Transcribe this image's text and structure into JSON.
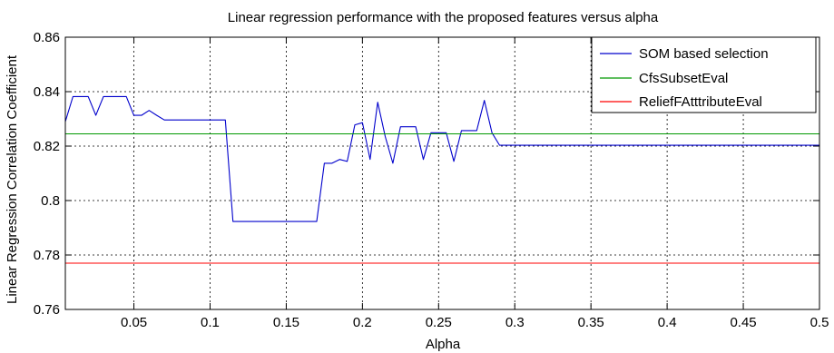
{
  "chart_data": {
    "type": "line",
    "title": "Linear regression performance with the proposed features versus alpha",
    "xlabel": "Alpha",
    "ylabel": "Linear Regression Correlation Coefficient",
    "xlim": [
      0.005,
      0.5
    ],
    "ylim": [
      0.76,
      0.86
    ],
    "x_ticks": [
      0.05,
      0.1,
      0.15,
      0.2,
      0.25,
      0.3,
      0.35,
      0.4,
      0.45,
      0.5
    ],
    "x_tick_labels": [
      "0.05",
      "0.1",
      "0.15",
      "0.2",
      "0.25",
      "0.3",
      "0.35",
      "0.4",
      "0.45",
      "0.5"
    ],
    "y_ticks": [
      0.76,
      0.78,
      0.8,
      0.82,
      0.84,
      0.86
    ],
    "y_tick_labels": [
      "0.76",
      "0.78",
      "0.8",
      "0.82",
      "0.84",
      "0.86"
    ],
    "grid": true,
    "legend_position": "top-right",
    "series": [
      {
        "name": "SOM based selection",
        "color": "#0000cc",
        "points": [
          [
            0.005,
            0.829
          ],
          [
            0.01,
            0.8382
          ],
          [
            0.015,
            0.8382
          ],
          [
            0.02,
            0.8382
          ],
          [
            0.025,
            0.8313
          ],
          [
            0.03,
            0.8382
          ],
          [
            0.035,
            0.8382
          ],
          [
            0.04,
            0.8382
          ],
          [
            0.045,
            0.8382
          ],
          [
            0.05,
            0.8313
          ],
          [
            0.055,
            0.8313
          ],
          [
            0.06,
            0.8331
          ],
          [
            0.065,
            0.8313
          ],
          [
            0.07,
            0.8296
          ],
          [
            0.075,
            0.8296
          ],
          [
            0.08,
            0.8296
          ],
          [
            0.085,
            0.8296
          ],
          [
            0.09,
            0.8296
          ],
          [
            0.095,
            0.8296
          ],
          [
            0.1,
            0.8296
          ],
          [
            0.105,
            0.8296
          ],
          [
            0.11,
            0.8296
          ],
          [
            0.115,
            0.7923
          ],
          [
            0.12,
            0.7923
          ],
          [
            0.125,
            0.7923
          ],
          [
            0.13,
            0.7923
          ],
          [
            0.135,
            0.7923
          ],
          [
            0.14,
            0.7923
          ],
          [
            0.145,
            0.7923
          ],
          [
            0.15,
            0.7923
          ],
          [
            0.155,
            0.7923
          ],
          [
            0.16,
            0.7923
          ],
          [
            0.165,
            0.7923
          ],
          [
            0.17,
            0.7923
          ],
          [
            0.175,
            0.8137
          ],
          [
            0.18,
            0.8137
          ],
          [
            0.185,
            0.8151
          ],
          [
            0.19,
            0.8144
          ],
          [
            0.195,
            0.8278
          ],
          [
            0.2,
            0.8286
          ],
          [
            0.205,
            0.8151
          ],
          [
            0.21,
            0.8361
          ],
          [
            0.215,
            0.8235
          ],
          [
            0.22,
            0.8137
          ],
          [
            0.225,
            0.8271
          ],
          [
            0.23,
            0.8271
          ],
          [
            0.235,
            0.8271
          ],
          [
            0.24,
            0.8151
          ],
          [
            0.245,
            0.8249
          ],
          [
            0.25,
            0.8249
          ],
          [
            0.255,
            0.8249
          ],
          [
            0.26,
            0.8144
          ],
          [
            0.265,
            0.8257
          ],
          [
            0.27,
            0.8257
          ],
          [
            0.275,
            0.8257
          ],
          [
            0.28,
            0.8368
          ],
          [
            0.285,
            0.8249
          ],
          [
            0.29,
            0.8203
          ],
          [
            0.3,
            0.8203
          ],
          [
            0.35,
            0.8203
          ],
          [
            0.4,
            0.8203
          ],
          [
            0.45,
            0.8203
          ],
          [
            0.5,
            0.8203
          ]
        ]
      },
      {
        "name": "CfsSubsetEval",
        "color": "#009900",
        "points": [
          [
            0.005,
            0.8245
          ],
          [
            0.5,
            0.8245
          ]
        ]
      },
      {
        "name": "ReliefFAtttributeEval",
        "color": "#ff0000",
        "points": [
          [
            0.005,
            0.777
          ],
          [
            0.5,
            0.777
          ]
        ]
      }
    ]
  }
}
